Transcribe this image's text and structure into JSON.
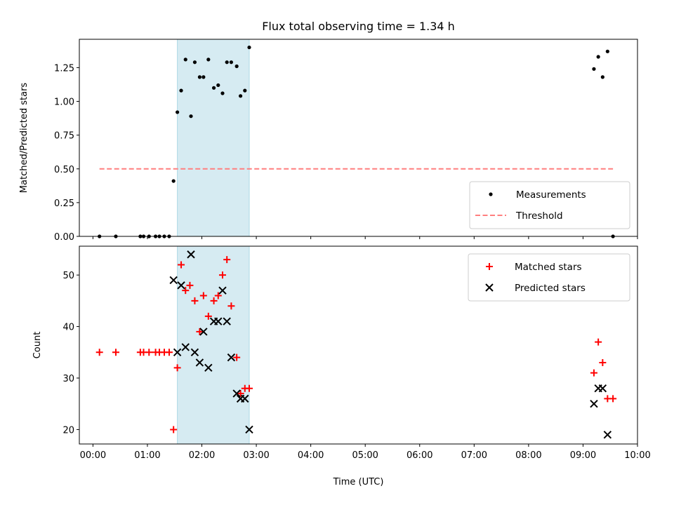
{
  "chart_data": [
    {
      "type": "scatter",
      "title": "Flux total observing time = 1.34 h",
      "xlabel": "",
      "ylabel": "Matched/Predicted stars",
      "xlim": [
        -0.25,
        10.0
      ],
      "ylim": [
        0.0,
        1.46
      ],
      "xtick_values": [
        0,
        1,
        2,
        3,
        4,
        5,
        6,
        7,
        8,
        9,
        10
      ],
      "yticks": [
        0.0,
        0.25,
        0.5,
        0.75,
        1.0,
        1.25
      ],
      "ytick_labels": [
        "0.00",
        "0.25",
        "0.50",
        "0.75",
        "1.00",
        "1.25"
      ],
      "grid": false,
      "legend_position": "bottom-right",
      "shaded_interval": {
        "x_start": 1.55,
        "x_end": 2.87,
        "color": "#add8e6"
      },
      "threshold": {
        "name": "Threshold",
        "value": 0.5,
        "x_start": 0.12,
        "x_end": 9.55,
        "color": "#ff7f7f"
      },
      "series": [
        {
          "name": "Measurements",
          "marker": "dot",
          "color": "#000000",
          "points": [
            [
              0.12,
              0.0
            ],
            [
              0.42,
              0.0
            ],
            [
              0.87,
              0.0
            ],
            [
              0.93,
              0.0
            ],
            [
              1.03,
              0.0
            ],
            [
              1.15,
              0.0
            ],
            [
              1.22,
              0.0
            ],
            [
              1.31,
              0.0
            ],
            [
              1.4,
              0.0
            ],
            [
              1.48,
              0.41
            ],
            [
              1.55,
              0.92
            ],
            [
              1.62,
              1.08
            ],
            [
              1.7,
              1.31
            ],
            [
              1.8,
              0.89
            ],
            [
              1.87,
              1.29
            ],
            [
              1.96,
              1.18
            ],
            [
              2.03,
              1.18
            ],
            [
              2.12,
              1.31
            ],
            [
              2.22,
              1.1
            ],
            [
              2.3,
              1.12
            ],
            [
              2.38,
              1.06
            ],
            [
              2.46,
              1.29
            ],
            [
              2.54,
              1.29
            ],
            [
              2.64,
              1.26
            ],
            [
              2.71,
              1.04
            ],
            [
              2.79,
              1.08
            ],
            [
              2.87,
              1.4
            ],
            [
              9.2,
              1.24
            ],
            [
              9.28,
              1.33
            ],
            [
              9.36,
              1.18
            ],
            [
              9.45,
              1.37
            ],
            [
              9.55,
              0.0
            ]
          ]
        }
      ]
    },
    {
      "type": "scatter",
      "title": "",
      "xlabel": "Time (UTC)",
      "ylabel": "Count",
      "xlim": [
        -0.25,
        10.0
      ],
      "ylim": [
        17.2,
        55.6
      ],
      "xtick_values": [
        0,
        1,
        2,
        3,
        4,
        5,
        6,
        7,
        8,
        9,
        10
      ],
      "xtick_labels": [
        "00:00",
        "01:00",
        "02:00",
        "03:00",
        "04:00",
        "05:00",
        "06:00",
        "07:00",
        "08:00",
        "09:00",
        "10:00"
      ],
      "yticks": [
        20,
        30,
        40,
        50
      ],
      "ytick_labels": [
        "20",
        "30",
        "40",
        "50"
      ],
      "grid": false,
      "legend_position": "top-right",
      "shaded_interval": {
        "x_start": 1.55,
        "x_end": 2.87,
        "color": "#add8e6"
      },
      "series": [
        {
          "name": "Matched stars",
          "marker": "plus",
          "color": "#ff0000",
          "points": [
            [
              0.12,
              35
            ],
            [
              0.42,
              35
            ],
            [
              0.87,
              35
            ],
            [
              0.93,
              35
            ],
            [
              1.03,
              35
            ],
            [
              1.15,
              35
            ],
            [
              1.22,
              35
            ],
            [
              1.31,
              35
            ],
            [
              1.4,
              35
            ],
            [
              1.48,
              20
            ],
            [
              1.55,
              32
            ],
            [
              1.62,
              52
            ],
            [
              1.7,
              47
            ],
            [
              1.78,
              48
            ],
            [
              1.87,
              45
            ],
            [
              1.96,
              39
            ],
            [
              2.03,
              46
            ],
            [
              2.12,
              42
            ],
            [
              2.22,
              45
            ],
            [
              2.3,
              46
            ],
            [
              2.38,
              50
            ],
            [
              2.46,
              53
            ],
            [
              2.54,
              44
            ],
            [
              2.64,
              34
            ],
            [
              2.71,
              27
            ],
            [
              2.79,
              28
            ],
            [
              2.87,
              28
            ],
            [
              9.2,
              31
            ],
            [
              9.28,
              37
            ],
            [
              9.36,
              33
            ],
            [
              9.45,
              26
            ],
            [
              9.55,
              26
            ]
          ]
        },
        {
          "name": "Predicted stars",
          "marker": "x",
          "color": "#000000",
          "points": [
            [
              1.48,
              49
            ],
            [
              1.55,
              35
            ],
            [
              1.62,
              48
            ],
            [
              1.7,
              36
            ],
            [
              1.8,
              54
            ],
            [
              1.87,
              35
            ],
            [
              1.96,
              33
            ],
            [
              2.03,
              39
            ],
            [
              2.12,
              32
            ],
            [
              2.22,
              41
            ],
            [
              2.3,
              41
            ],
            [
              2.38,
              47
            ],
            [
              2.46,
              41
            ],
            [
              2.54,
              34
            ],
            [
              2.64,
              27
            ],
            [
              2.71,
              26
            ],
            [
              2.79,
              26
            ],
            [
              2.87,
              20
            ],
            [
              9.2,
              25
            ],
            [
              9.28,
              28
            ],
            [
              9.36,
              28
            ],
            [
              9.45,
              19
            ]
          ]
        }
      ]
    }
  ]
}
